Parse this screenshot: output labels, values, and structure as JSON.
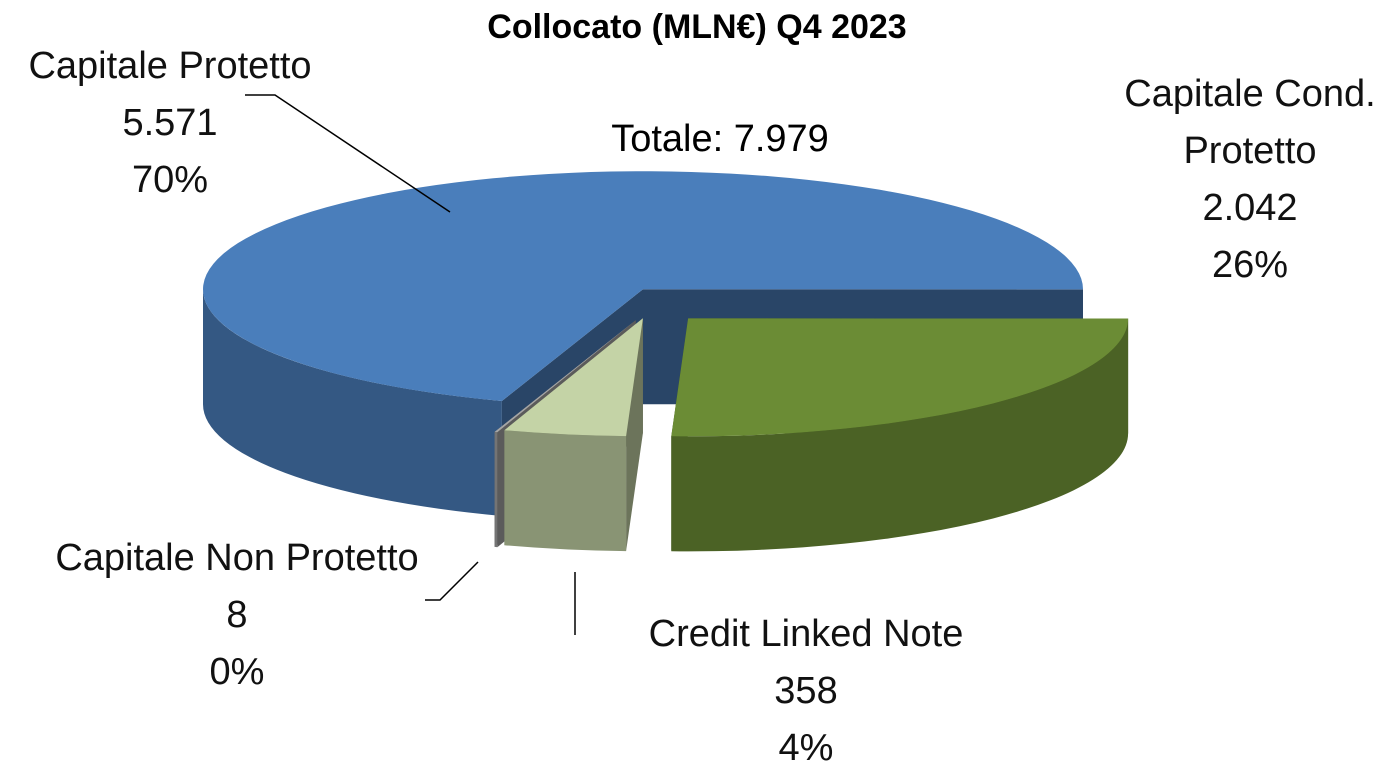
{
  "chart_data": {
    "type": "pie3d",
    "title": "Collocato  (MLN€) Q4 2023",
    "annotation": "Totale: 7.979",
    "categories": [
      "Capitale Protetto",
      "Capitale Cond. Protetto",
      "Credit Linked Note",
      "Capitale Non Protetto"
    ],
    "values": [
      5571,
      2042,
      358,
      8
    ],
    "value_labels": [
      "5.571",
      "2.042",
      "358",
      "8"
    ],
    "percent_labels": [
      "70%",
      "26%",
      "4%",
      "0%"
    ],
    "colors": [
      "#4a7ebb",
      "#6b8c35",
      "#c4d3a6",
      "#a6a6a6"
    ]
  }
}
